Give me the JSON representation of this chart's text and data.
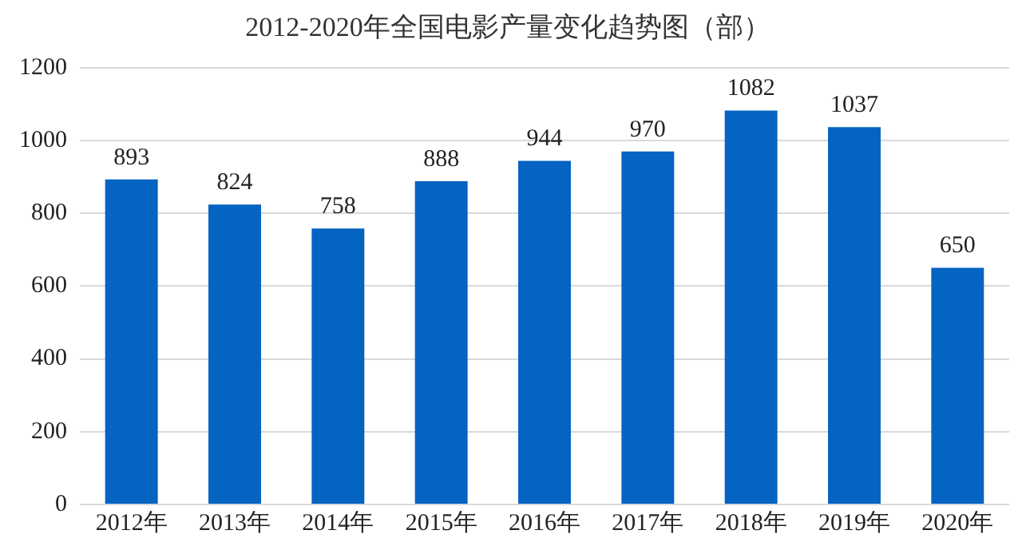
{
  "chart_data": {
    "type": "bar",
    "title": "2012-2020年全国电影产量变化趋势图（部）",
    "categories": [
      "2012年",
      "2013年",
      "2014年",
      "2015年",
      "2016年",
      "2017年",
      "2018年",
      "2019年",
      "2020年"
    ],
    "values": [
      893,
      824,
      758,
      888,
      944,
      970,
      1082,
      1037,
      650
    ],
    "color": "#0563c1",
    "ylim": [
      0,
      1200
    ],
    "yticks": [
      0,
      200,
      400,
      600,
      800,
      1000,
      1200
    ],
    "grid": "y",
    "legend": false,
    "data_labels": true
  }
}
